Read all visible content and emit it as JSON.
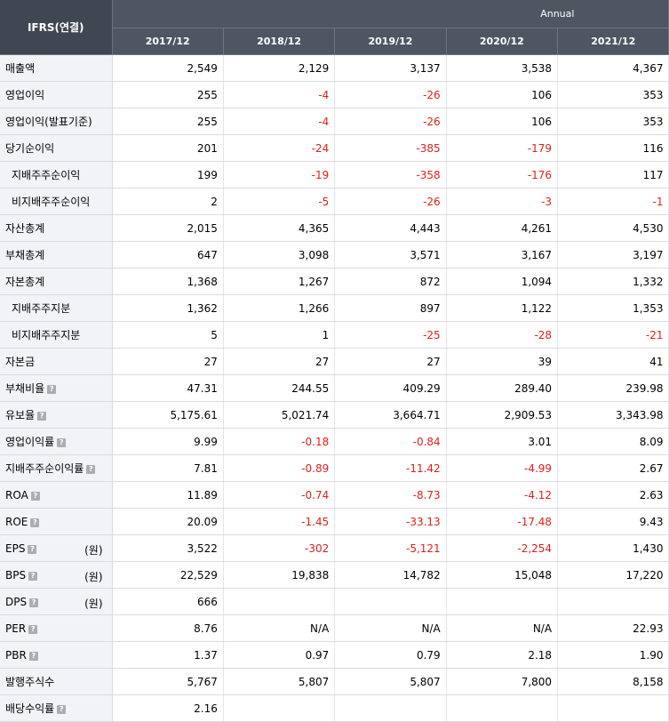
{
  "header": {
    "corner_label": "IFRS(연결)",
    "period_label": "Annual",
    "years": [
      "2017/12",
      "2018/12",
      "2019/12",
      "2020/12",
      "2021/12"
    ]
  },
  "rows": [
    {
      "label": "매출액",
      "sub": false,
      "help": false,
      "unit": "",
      "values": [
        "2,549",
        "2,129",
        "3,137",
        "3,538",
        "4,367"
      ]
    },
    {
      "label": "영업이익",
      "sub": false,
      "help": false,
      "unit": "",
      "values": [
        "255",
        "-4",
        "-26",
        "106",
        "353"
      ]
    },
    {
      "label": "영업이익(발표기준)",
      "sub": false,
      "help": false,
      "unit": "",
      "values": [
        "255",
        "-4",
        "-26",
        "106",
        "353"
      ]
    },
    {
      "label": "당기순이익",
      "sub": false,
      "help": false,
      "unit": "",
      "values": [
        "201",
        "-24",
        "-385",
        "-179",
        "116"
      ]
    },
    {
      "label": "지배주주순이익",
      "sub": true,
      "help": false,
      "unit": "",
      "values": [
        "199",
        "-19",
        "-358",
        "-176",
        "117"
      ]
    },
    {
      "label": "비지배주주순이익",
      "sub": true,
      "help": false,
      "unit": "",
      "values": [
        "2",
        "-5",
        "-26",
        "-3",
        "-1"
      ]
    },
    {
      "label": "자산총계",
      "sub": false,
      "help": false,
      "unit": "",
      "values": [
        "2,015",
        "4,365",
        "4,443",
        "4,261",
        "4,530"
      ]
    },
    {
      "label": "부채총계",
      "sub": false,
      "help": false,
      "unit": "",
      "values": [
        "647",
        "3,098",
        "3,571",
        "3,167",
        "3,197"
      ]
    },
    {
      "label": "자본총계",
      "sub": false,
      "help": false,
      "unit": "",
      "values": [
        "1,368",
        "1,267",
        "872",
        "1,094",
        "1,332"
      ]
    },
    {
      "label": "지배주주지분",
      "sub": true,
      "help": false,
      "unit": "",
      "values": [
        "1,362",
        "1,266",
        "897",
        "1,122",
        "1,353"
      ]
    },
    {
      "label": "비지배주주지분",
      "sub": true,
      "help": false,
      "unit": "",
      "values": [
        "5",
        "1",
        "-25",
        "-28",
        "-21"
      ]
    },
    {
      "label": "자본금",
      "sub": false,
      "help": false,
      "unit": "",
      "values": [
        "27",
        "27",
        "27",
        "39",
        "41"
      ]
    },
    {
      "label": "부채비율",
      "sub": false,
      "help": true,
      "unit": "",
      "values": [
        "47.31",
        "244.55",
        "409.29",
        "289.40",
        "239.98"
      ]
    },
    {
      "label": "유보율",
      "sub": false,
      "help": true,
      "unit": "",
      "values": [
        "5,175.61",
        "5,021.74",
        "3,664.71",
        "2,909.53",
        "3,343.98"
      ]
    },
    {
      "label": "영업이익률",
      "sub": false,
      "help": true,
      "unit": "",
      "values": [
        "9.99",
        "-0.18",
        "-0.84",
        "3.01",
        "8.09"
      ]
    },
    {
      "label": "지배주주순이익률",
      "sub": false,
      "help": true,
      "unit": "",
      "values": [
        "7.81",
        "-0.89",
        "-11.42",
        "-4.99",
        "2.67"
      ]
    },
    {
      "label": "ROA",
      "sub": false,
      "help": true,
      "unit": "",
      "values": [
        "11.89",
        "-0.74",
        "-8.73",
        "-4.12",
        "2.63"
      ]
    },
    {
      "label": "ROE",
      "sub": false,
      "help": true,
      "unit": "",
      "values": [
        "20.09",
        "-1.45",
        "-33.13",
        "-17.48",
        "9.43"
      ]
    },
    {
      "label": "EPS",
      "sub": false,
      "help": true,
      "unit": "(원)",
      "values": [
        "3,522",
        "-302",
        "-5,121",
        "-2,254",
        "1,430"
      ]
    },
    {
      "label": "BPS",
      "sub": false,
      "help": true,
      "unit": "(원)",
      "values": [
        "22,529",
        "19,838",
        "14,782",
        "15,048",
        "17,220"
      ]
    },
    {
      "label": "DPS",
      "sub": false,
      "help": true,
      "unit": "(원)",
      "values": [
        "666",
        "",
        "",
        "",
        ""
      ]
    },
    {
      "label": "PER",
      "sub": false,
      "help": true,
      "unit": "",
      "values": [
        "8.76",
        "N/A",
        "N/A",
        "N/A",
        "22.93"
      ]
    },
    {
      "label": "PBR",
      "sub": false,
      "help": true,
      "unit": "",
      "values": [
        "1.37",
        "0.97",
        "0.79",
        "2.18",
        "1.90"
      ]
    },
    {
      "label": "발행주식수",
      "sub": false,
      "help": false,
      "unit": "",
      "values": [
        "5,767",
        "5,807",
        "5,807",
        "7,800",
        "8,158"
      ]
    },
    {
      "label": "배당수익률",
      "sub": false,
      "help": true,
      "unit": "",
      "values": [
        "2.16",
        "",
        "",
        "",
        ""
      ]
    }
  ],
  "help_icon_glyph": "?",
  "colors": {
    "header_bg": "#4d5661",
    "negative": "#e0201a",
    "label_bg": "#f1f3f7"
  }
}
